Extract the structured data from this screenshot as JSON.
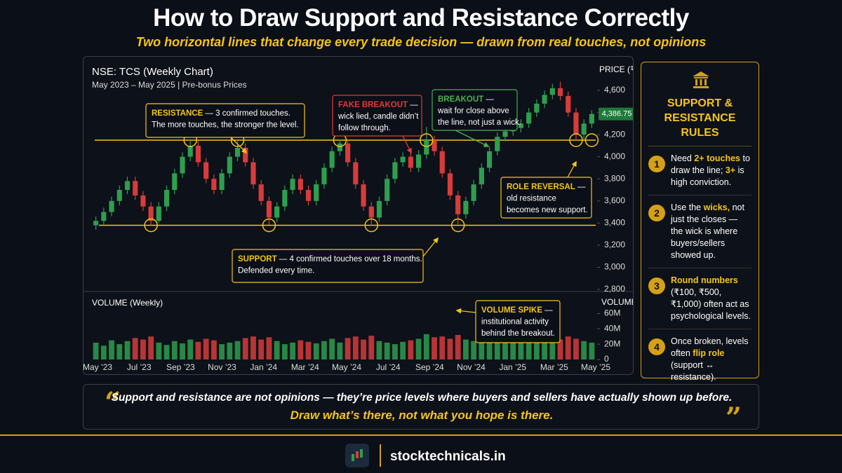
{
  "header": {
    "title": "How to Draw Support and Resistance Correctly",
    "subtitle": "Two horizontal lines that change every trade decision — drawn from real touches, not opinions"
  },
  "chart_data": {
    "type": "candlestick",
    "title": "NSE: TCS  (Weekly Chart)",
    "subtitle": "May 2023 – May 2025  |  Pre-bonus Prices",
    "y_label": "PRICE (₹)",
    "volume_title": "VOLUME (Weekly)",
    "volume_axis_label": "VOLUME",
    "open": [
      3380,
      3420,
      3500,
      3600,
      3700,
      3780,
      3650,
      3550,
      3420,
      3550,
      3700,
      3850,
      4000,
      4100,
      3950,
      3800,
      3700,
      3850,
      4000,
      4080,
      3950,
      3750,
      3600,
      3450,
      3550,
      3700,
      3800,
      3700,
      3600,
      3750,
      3900,
      4050,
      4120,
      3950,
      3750,
      3550,
      3450,
      3600,
      3800,
      3950,
      4000,
      3900,
      4020,
      4150,
      4050,
      3850,
      3650,
      3480,
      3600,
      3750,
      3900,
      4050,
      4180,
      4230,
      4260,
      4300,
      4400,
      4480,
      4560,
      4620,
      4550,
      4400,
      4200,
      4300
    ],
    "high": [
      3460,
      3540,
      3640,
      3740,
      3820,
      3820,
      3690,
      3590,
      3590,
      3740,
      3890,
      4040,
      4150,
      4140,
      3990,
      3840,
      3890,
      4040,
      4140,
      4120,
      3990,
      3790,
      3640,
      3590,
      3740,
      3840,
      3840,
      3740,
      3790,
      3940,
      4090,
      4155,
      4160,
      3990,
      3790,
      3590,
      3640,
      3840,
      3990,
      4040,
      4040,
      4060,
      4270,
      4190,
      4090,
      3890,
      3690,
      3640,
      3790,
      3940,
      4090,
      4220,
      4270,
      4300,
      4340,
      4440,
      4520,
      4600,
      4660,
      4680,
      4590,
      4440,
      4340,
      4420
    ],
    "low": [
      3340,
      3380,
      3460,
      3560,
      3660,
      3610,
      3510,
      3380,
      3400,
      3510,
      3660,
      3810,
      3960,
      3910,
      3760,
      3660,
      3660,
      3810,
      3960,
      3910,
      3710,
      3560,
      3385,
      3410,
      3510,
      3660,
      3660,
      3560,
      3560,
      3710,
      3860,
      4010,
      3910,
      3710,
      3510,
      3380,
      3410,
      3560,
      3760,
      3910,
      3860,
      3860,
      3980,
      4010,
      3810,
      3610,
      3390,
      3440,
      3560,
      3710,
      3860,
      4010,
      4140,
      4190,
      4220,
      4260,
      4360,
      4440,
      4520,
      4510,
      4360,
      4150,
      4160,
      4260
    ],
    "close": [
      3420,
      3500,
      3600,
      3700,
      3780,
      3650,
      3550,
      3420,
      3550,
      3700,
      3850,
      4000,
      4100,
      3950,
      3800,
      3700,
      3850,
      4000,
      4080,
      3950,
      3750,
      3600,
      3450,
      3550,
      3700,
      3800,
      3700,
      3600,
      3750,
      3900,
      4050,
      4120,
      3950,
      3750,
      3550,
      3450,
      3600,
      3800,
      3950,
      4000,
      3900,
      4020,
      4150,
      4050,
      3850,
      3650,
      3480,
      3600,
      3750,
      3900,
      4050,
      4180,
      4230,
      4260,
      4300,
      4400,
      4480,
      4560,
      4620,
      4550,
      4400,
      4200,
      4300,
      4386.75
    ],
    "volume": [
      22,
      18,
      25,
      20,
      24,
      28,
      26,
      30,
      22,
      19,
      24,
      21,
      26,
      23,
      27,
      25,
      20,
      22,
      24,
      28,
      30,
      26,
      29,
      24,
      20,
      22,
      25,
      23,
      21,
      24,
      27,
      22,
      28,
      30,
      26,
      31,
      24,
      22,
      20,
      23,
      25,
      27,
      33,
      29,
      30,
      27,
      32,
      26,
      24,
      22,
      28,
      58,
      30,
      26,
      24,
      27,
      25,
      23,
      28,
      26,
      30,
      27,
      24,
      22
    ],
    "up_color": "#2e9e4f",
    "down_color": "#d83b3b",
    "level_color": "#f5c518",
    "ylim": [
      2800,
      4600
    ],
    "yticks": [
      {
        "value": 2800,
        "label": "2,800"
      },
      {
        "value": 3000,
        "label": "3,000"
      },
      {
        "value": 3200,
        "label": "3,200"
      },
      {
        "value": 3400,
        "label": "3,400"
      },
      {
        "value": 3600,
        "label": "3,600"
      },
      {
        "value": 3800,
        "label": "3,800"
      },
      {
        "value": 4000,
        "label": "4,000"
      },
      {
        "value": 4200,
        "label": "4,200"
      },
      {
        "value": 4400,
        "label": "4,400"
      },
      {
        "value": 4600,
        "label": "4,600"
      }
    ],
    "volume_lim": [
      0,
      64
    ],
    "volume_ticks": [
      0,
      {
        "value": 20,
        "label": "20M"
      },
      {
        "value": 40,
        "label": "40M"
      },
      {
        "value": 60,
        "label": "60M"
      }
    ],
    "x_labels": [
      "May ’23",
      "Jul ’23",
      "Sep ’23",
      "Nov ’23",
      "Jan ’24",
      "Mar ’24",
      "May ’24",
      "Jul ’24",
      "Sep ’24",
      "Nov ’24",
      "Jan ’25",
      "Mar ’25",
      "May ’25"
    ],
    "last_price": {
      "value": 4386.75,
      "label": "4,386.75"
    },
    "resistance_level": 4150,
    "support_level": 3380,
    "annotations": [
      {
        "title": "RESISTANCE",
        "color": "#f5c518",
        "lines": [
          " — 3 confirmed touches.",
          "The more touches, the stronger the level."
        ]
      },
      {
        "title": "FAKE BREAKOUT",
        "color": "#e53935",
        "lines": [
          " —",
          "wick lied, candle didn’t",
          "follow through."
        ]
      },
      {
        "title": "BREAKOUT",
        "color": "#4caf50",
        "lines": [
          " —",
          "wait for close above",
          "the line, not just a wick."
        ]
      },
      {
        "title": "ROLE REVERSAL",
        "color": "#f5c518",
        "lines": [
          " —",
          "old resistance",
          "becomes new support."
        ]
      },
      {
        "title": "SUPPORT",
        "color": "#f5c518",
        "lines": [
          " — 4 confirmed touches over 18 months.",
          "Defended every time."
        ]
      },
      {
        "title": "VOLUME SPIKE",
        "color": "#f5c518",
        "lines": [
          " —",
          "institutional activity",
          "behind the breakout."
        ]
      }
    ]
  },
  "sidebar": {
    "title": "SUPPORT & RESISTANCE RULES",
    "rules": [
      {
        "number": 1,
        "parts": [
          "Need ",
          {
            "text": "2+ touches"
          },
          " to draw the line; ",
          {
            "text": "3+"
          },
          " is high conviction."
        ]
      },
      {
        "number": 2,
        "parts": [
          "Use the ",
          {
            "text": "wicks,"
          },
          " not just the closes — the wick is where buyers/sellers showed up."
        ]
      },
      {
        "number": 3,
        "parts": [
          {
            "text": "Round numbers"
          },
          " (₹100, ₹500, ₹1,000) often act as psychological levels."
        ]
      },
      {
        "number": 4,
        "parts": [
          "Once broken, levels often ",
          {
            "text": "flip role"
          },
          " (support ↔ resistance)."
        ]
      }
    ]
  },
  "quote": {
    "open_mark": "“",
    "close_mark": "”",
    "line1": "Support and resistance are not opinions — they’re price levels where buyers and sellers have actually shown up before.",
    "line2": "Draw what’s there, not what you hope is there."
  },
  "footer": {
    "site": "stocktechnicals.in"
  }
}
